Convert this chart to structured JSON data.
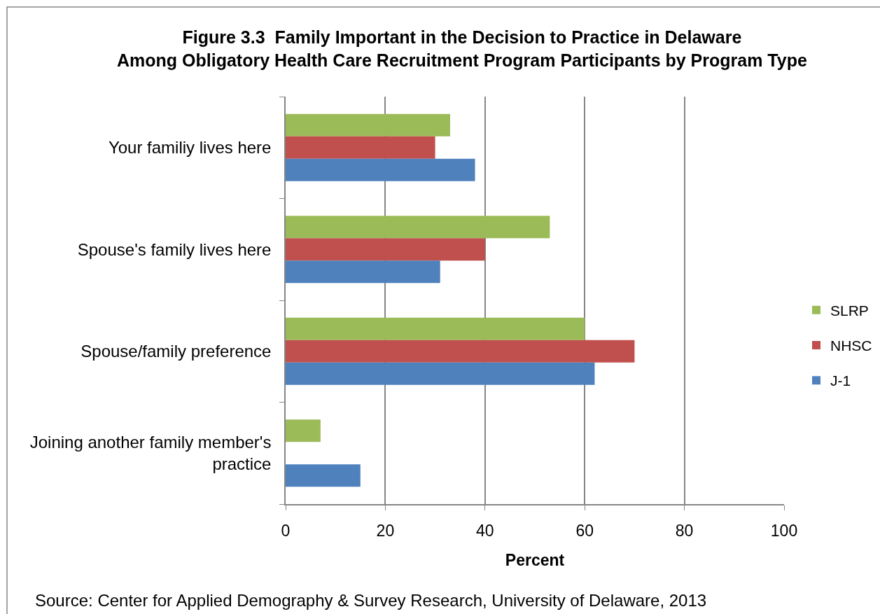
{
  "chart_data": {
    "type": "bar",
    "orientation": "horizontal",
    "title": "Figure 3.3  Family Important in the Decision to Practice in Delaware\nAmong Obligatory Health Care Recruitment Program Participants by Program Type",
    "xlabel": "Percent",
    "categories": [
      "Your familiy lives here",
      "Spouse's family lives here",
      "Spouse/family preference",
      "Joining another family member's practice"
    ],
    "series": [
      {
        "name": "SLRP",
        "color": "#9bbb59",
        "values": [
          33,
          53,
          60,
          7
        ]
      },
      {
        "name": "NHSC",
        "color": "#c0504d",
        "values": [
          30,
          40,
          70,
          null
        ]
      },
      {
        "name": "J-1",
        "color": "#4f81bd",
        "values": [
          38,
          31,
          62,
          15
        ]
      }
    ],
    "xlim": [
      0,
      100
    ],
    "xticks": [
      0,
      20,
      40,
      60,
      80,
      100
    ],
    "grid": "x",
    "legend": "right",
    "annotations": [
      "Source: Center for Applied Demography & Survey Research, University of Delaware, 2013"
    ]
  }
}
